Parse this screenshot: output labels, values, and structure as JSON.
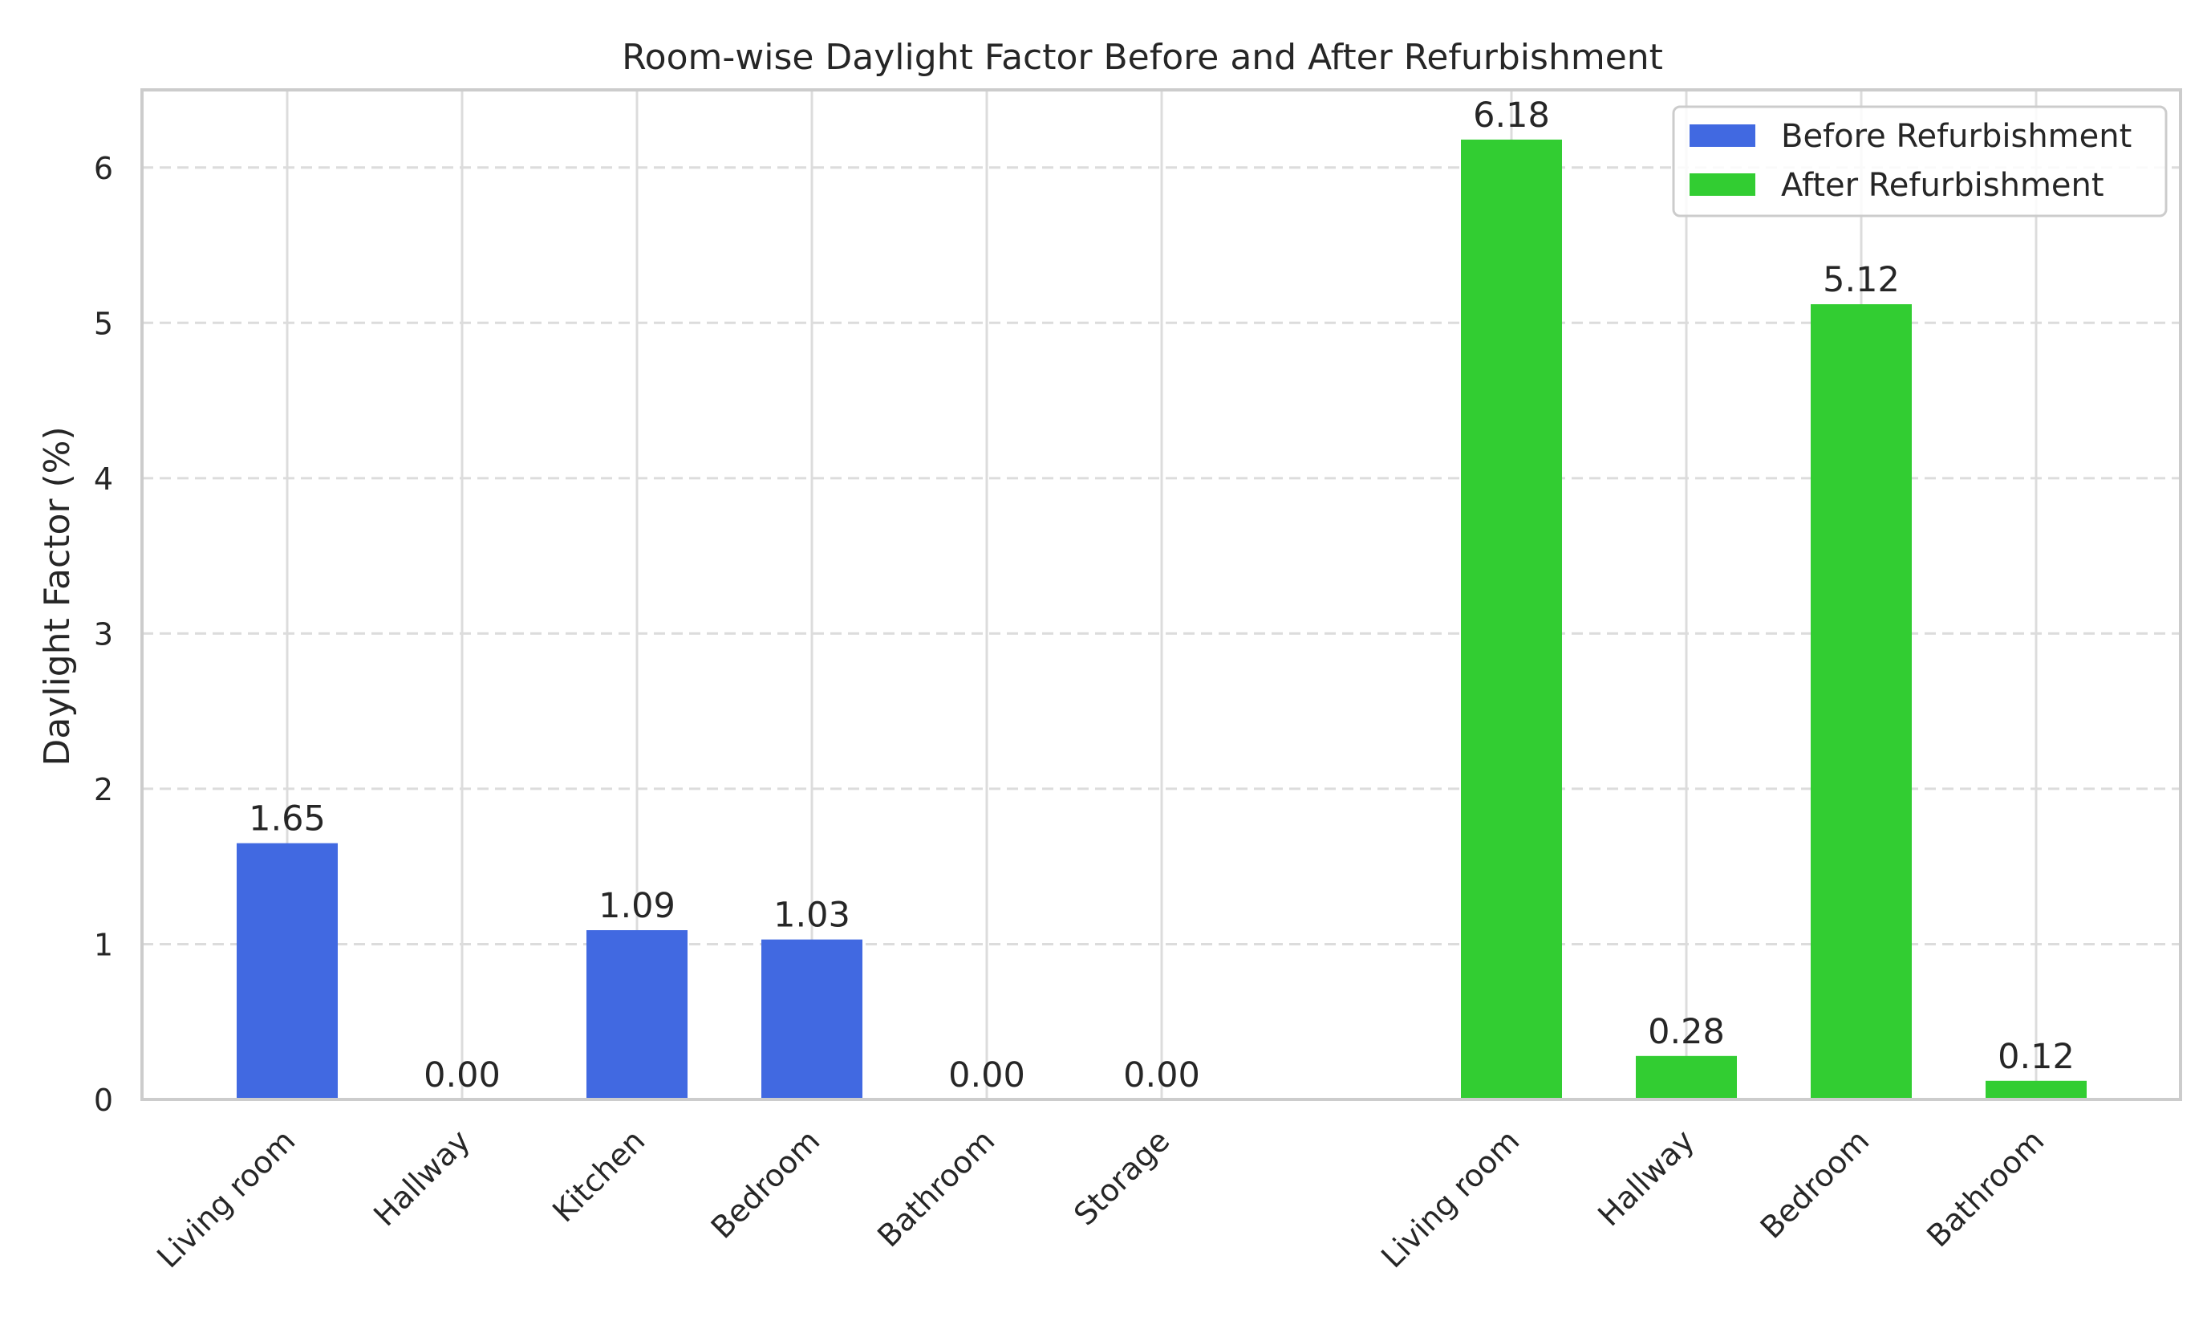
{
  "chart_data": {
    "type": "bar",
    "title": "Room-wise Daylight Factor Before and After Refurbishment",
    "xlabel": "",
    "ylabel": "Daylight Factor (%)",
    "ylim": [
      0,
      6.5
    ],
    "yticks": [
      0,
      1,
      2,
      3,
      4,
      5,
      6
    ],
    "grid": "y dashed, x solid",
    "legend_position": "top-right",
    "value_format": "2 decimals",
    "series": [
      {
        "name": "Before Refurbishment",
        "color": "#4169E1",
        "categories": [
          "Living room",
          "Hallway",
          "Kitchen",
          "Bedroom",
          "Bathroom",
          "Storage"
        ],
        "values": [
          1.65,
          0.0,
          1.09,
          1.03,
          0.0,
          0.0
        ],
        "value_labels": [
          "1.65",
          "0.00",
          "1.09",
          "1.03",
          "0.00",
          "0.00"
        ]
      },
      {
        "name": "After Refurbishment",
        "color": "#32CD32",
        "categories": [
          "Living room",
          "Hallway",
          "Bedroom",
          "Bathroom"
        ],
        "values": [
          6.18,
          0.28,
          5.12,
          0.12
        ],
        "value_labels": [
          "6.18",
          "0.28",
          "5.12",
          "0.12"
        ]
      }
    ]
  }
}
